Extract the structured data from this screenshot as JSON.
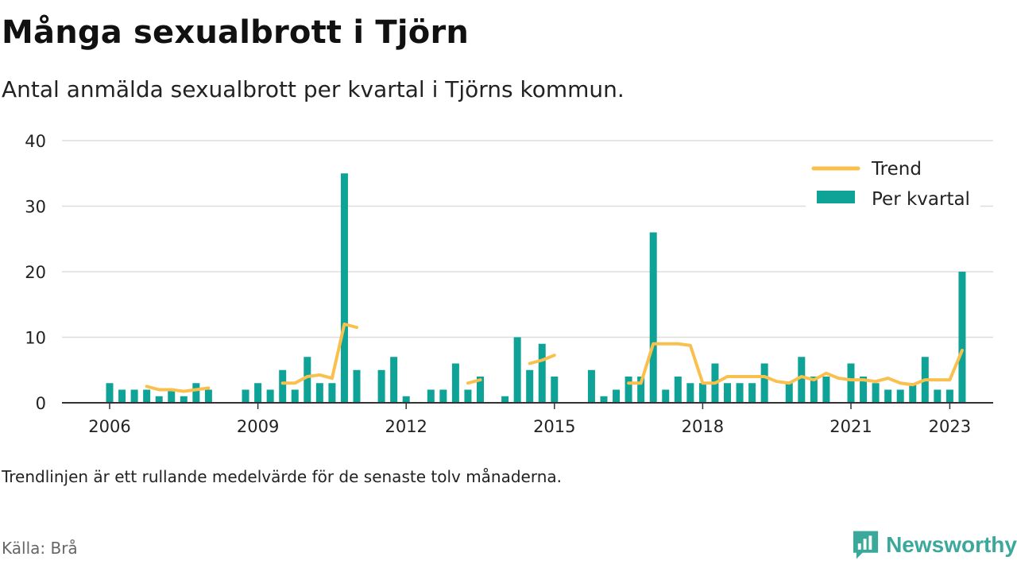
{
  "title": "Många sexualbrott i Tjörn",
  "subtitle": "Antal anmälda sexualbrott per kvartal i Tjörns kommun.",
  "note": "Trendlinjen är ett rullande medelvärde för de senaste tolv månaderna.",
  "source": "Källa: Brå",
  "brand": {
    "name": "Newsworthy",
    "icon": "newsworthy-chat-bars-icon",
    "color": "#3aa89a"
  },
  "colors": {
    "bar": "#0ea396",
    "trend": "#f9c04e",
    "grid": "#dddddd",
    "axis": "#333333"
  },
  "chart_data": {
    "type": "bar",
    "x_start": "2006 Q1",
    "x_ticks": [
      "2006",
      "2009",
      "2012",
      "2015",
      "2018",
      "2021",
      "2023"
    ],
    "x_tick_years": [
      2006,
      2009,
      2012,
      2015,
      2018,
      2021,
      2023
    ],
    "y_ticks": [
      "0",
      "10",
      "20",
      "30",
      "40"
    ],
    "ylim": [
      0,
      40
    ],
    "grid": true,
    "legend": {
      "position": "top-right"
    },
    "series": [
      {
        "name": "Per kvartal",
        "kind": "bar",
        "values": [
          3,
          2,
          2,
          2,
          1,
          2,
          1,
          3,
          2,
          null,
          null,
          2,
          3,
          2,
          5,
          2,
          7,
          3,
          3,
          35,
          5,
          null,
          5,
          7,
          1,
          null,
          2,
          2,
          6,
          2,
          4,
          null,
          1,
          10,
          5,
          9,
          4,
          null,
          null,
          5,
          1,
          2,
          4,
          4,
          26,
          2,
          4,
          3,
          3,
          6,
          3,
          3,
          3,
          6,
          null,
          3,
          7,
          4,
          4,
          null,
          6,
          4,
          3,
          2,
          2,
          3,
          7,
          2,
          2,
          20
        ]
      },
      {
        "name": "Trend",
        "kind": "line",
        "values": [
          null,
          null,
          null,
          2.5,
          2,
          2,
          1.75,
          2,
          2.25,
          null,
          null,
          null,
          null,
          null,
          3,
          3,
          4,
          4.25,
          3.75,
          12,
          11.5,
          null,
          null,
          null,
          null,
          null,
          null,
          null,
          null,
          3,
          3.5,
          null,
          null,
          null,
          6,
          6.5,
          7.25,
          null,
          null,
          null,
          null,
          null,
          3,
          3,
          9,
          9,
          9,
          8.75,
          3,
          3,
          4,
          4,
          4,
          4,
          3.25,
          3,
          4,
          3.5,
          4.5,
          3.75,
          3.5,
          3.5,
          3.25,
          3.75,
          3,
          2.75,
          3.5,
          3.5,
          3.5,
          8
        ]
      }
    ]
  }
}
